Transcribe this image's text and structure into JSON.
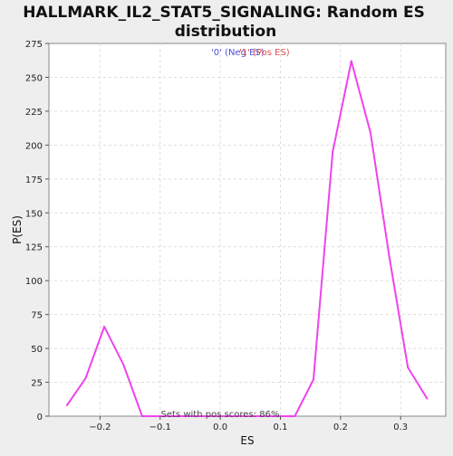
{
  "title_line1": "HALLMARK_IL2_STAT5_SIGNALING: Random ES",
  "title_line2": "distribution",
  "legend": {
    "neg_label": "'0' (Neg ES)",
    "pos_label": "'1' (Pos ES)",
    "neg_color": "#4f4fd9",
    "pos_color": "#d94f4f"
  },
  "annotation": "Sets with pos scores: 86%",
  "colors": {
    "line": "#ee44ee",
    "plot_bg": "#ffffff",
    "page_bg": "#eeeeee",
    "grid": "#dddddd"
  },
  "chart_data": {
    "type": "line",
    "xlabel": "ES",
    "ylabel": "P(ES)",
    "xlim": [
      -0.285,
      0.375
    ],
    "ylim": [
      0,
      275
    ],
    "xticks": [
      -0.2,
      -0.1,
      0.0,
      0.1,
      0.2,
      0.3
    ],
    "xtick_labels": [
      "−0.2",
      "−0.1",
      "0.0",
      "0.1",
      "0.2",
      "0.3"
    ],
    "yticks": [
      0,
      25,
      50,
      75,
      100,
      125,
      150,
      175,
      200,
      225,
      250,
      275
    ],
    "ytick_labels": [
      "0",
      "25",
      "50",
      "75",
      "100",
      "125",
      "150",
      "175",
      "200",
      "225",
      "250",
      "275"
    ],
    "grid": true,
    "series": [
      {
        "x": [
          -0.255,
          -0.224,
          -0.193,
          -0.161,
          -0.13,
          -0.099,
          -0.068,
          -0.037,
          -0.006,
          0.025,
          0.056,
          0.087,
          0.124,
          0.155,
          0.187,
          0.218,
          0.25,
          0.281,
          0.312,
          0.344
        ],
        "y": [
          8,
          28,
          66,
          38,
          0,
          0,
          0,
          0,
          0,
          0,
          0,
          0,
          0,
          27,
          195,
          262,
          209,
          118,
          36,
          13
        ]
      }
    ]
  }
}
